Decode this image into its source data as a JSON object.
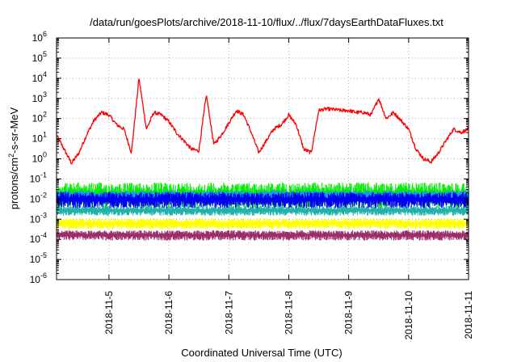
{
  "chart_data": {
    "type": "line",
    "title": "/data/run/goesPlots/archive/2018-11-10/flux/../flux/7daysEarthDataFluxes.txt",
    "xlabel": "Coordinated Universal Time (UTC)",
    "ylabel": "protons/cm²-s-sr-MeV",
    "ylabel_parts": {
      "main": "protons/cm",
      "sup": "2",
      "tail": "-s-sr-MeV"
    },
    "y_scale": "log",
    "ylim": [
      "1e-6",
      "1e6"
    ],
    "y_ticks": [
      {
        "base": "10",
        "exp": "-6"
      },
      {
        "base": "10",
        "exp": "-5"
      },
      {
        "base": "10",
        "exp": "-4"
      },
      {
        "base": "10",
        "exp": "-3"
      },
      {
        "base": "10",
        "exp": "-2"
      },
      {
        "base": "10",
        "exp": "-1"
      },
      {
        "base": "10",
        "exp": "0"
      },
      {
        "base": "10",
        "exp": "1"
      },
      {
        "base": "10",
        "exp": "2"
      },
      {
        "base": "10",
        "exp": "3"
      },
      {
        "base": "10",
        "exp": "4"
      },
      {
        "base": "10",
        "exp": "5"
      },
      {
        "base": "10",
        "exp": "6"
      }
    ],
    "x_range": [
      "2018-11-04 03:00",
      "2018-11-11 00:00"
    ],
    "x_ticks": [
      "2018-11-5",
      "2018-11-6",
      "2018-11-7",
      "2018-11-8",
      "2018-11-9",
      "2018-11-10",
      "2018-11-11"
    ],
    "grid": true,
    "legend": "none",
    "series": [
      {
        "color": "#ff0000",
        "style": "line",
        "x": [
          "2018-11-04 03:00",
          "2018-11-04 06:00",
          "2018-11-04 09:00",
          "2018-11-04 12:00",
          "2018-11-04 15:00",
          "2018-11-04 18:00",
          "2018-11-04 21:00",
          "2018-11-05 00:00",
          "2018-11-05 03:00",
          "2018-11-05 06:00",
          "2018-11-05 09:00",
          "2018-11-05 12:00",
          "2018-11-05 15:00",
          "2018-11-05 18:00",
          "2018-11-05 21:00",
          "2018-11-06 00:00",
          "2018-11-06 03:00",
          "2018-11-06 06:00",
          "2018-11-06 09:00",
          "2018-11-06 12:00",
          "2018-11-06 15:00",
          "2018-11-06 18:00",
          "2018-11-06 21:00",
          "2018-11-07 00:00",
          "2018-11-07 03:00",
          "2018-11-07 06:00",
          "2018-11-07 09:00",
          "2018-11-07 12:00",
          "2018-11-07 15:00",
          "2018-11-07 18:00",
          "2018-11-07 21:00",
          "2018-11-08 00:00",
          "2018-11-08 03:00",
          "2018-11-08 06:00",
          "2018-11-08 09:00",
          "2018-11-08 12:00",
          "2018-11-08 15:00",
          "2018-11-08 18:00",
          "2018-11-08 21:00",
          "2018-11-09 00:00",
          "2018-11-09 03:00",
          "2018-11-09 06:00",
          "2018-11-09 09:00",
          "2018-11-09 12:00",
          "2018-11-09 15:00",
          "2018-11-09 18:00",
          "2018-11-09 21:00",
          "2018-11-10 00:00",
          "2018-11-10 03:00",
          "2018-11-10 06:00",
          "2018-11-10 09:00",
          "2018-11-10 12:00",
          "2018-11-10 15:00",
          "2018-11-10 18:00",
          "2018-11-10 21:00",
          "2018-11-11 00:00"
        ],
        "y": [
          15,
          3,
          0.6,
          2,
          15,
          80,
          200,
          150,
          50,
          30,
          2,
          10000,
          30,
          200,
          150,
          70,
          20,
          8,
          3,
          2.5,
          1500,
          5,
          15,
          60,
          250,
          150,
          20,
          2,
          8,
          30,
          50,
          150,
          50,
          3,
          2,
          250,
          300,
          280,
          250,
          250,
          200,
          200,
          150,
          1000,
          100,
          200,
          80,
          30,
          3,
          1,
          0.7,
          2,
          8,
          30,
          20,
          30
        ]
      },
      {
        "color": "#00ee00",
        "style": "band",
        "x": [
          "2018-11-04 03:00",
          "2018-11-11 00:00"
        ],
        "y_low": [
          0.002,
          0.002
        ],
        "y_high": [
          0.08,
          0.08
        ]
      },
      {
        "color": "#1e90ff",
        "style": "band",
        "x": [
          "2018-11-04 03:00",
          "2018-11-11 00:00"
        ],
        "y_low": [
          0.005,
          0.005
        ],
        "y_high": [
          0.03,
          0.03
        ]
      },
      {
        "color": "#20b2aa",
        "style": "band",
        "x": [
          "2018-11-04 03:00",
          "2018-11-11 00:00"
        ],
        "y_low": [
          0.0012,
          0.0012
        ],
        "y_high": [
          0.005,
          0.005
        ]
      },
      {
        "color": "#0000ee",
        "style": "band",
        "x": [
          "2018-11-04 03:00",
          "2018-11-11 00:00"
        ],
        "y_low": [
          0.0025,
          0.0025
        ],
        "y_high": [
          0.025,
          0.025
        ]
      },
      {
        "color": "#ffff00",
        "style": "band",
        "x": [
          "2018-11-04 03:00",
          "2018-11-11 00:00"
        ],
        "y_low": [
          0.00025,
          0.00025
        ],
        "y_high": [
          0.0012,
          0.0012
        ]
      },
      {
        "color": "#9b2d6b",
        "style": "band",
        "x": [
          "2018-11-04 03:00",
          "2018-11-11 00:00"
        ],
        "y_low": [
          7e-05,
          7e-05
        ],
        "y_high": [
          0.0003,
          0.0003
        ]
      }
    ]
  }
}
